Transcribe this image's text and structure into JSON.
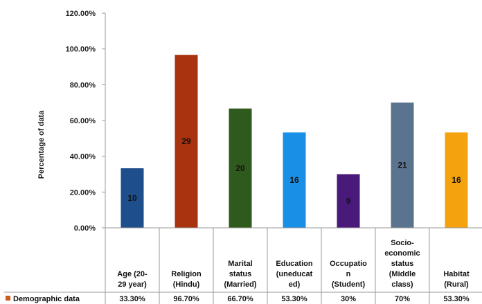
{
  "chart_data": {
    "type": "bar",
    "ylabel": "Percentage of data",
    "ylim": [
      0,
      120
    ],
    "y_ticks": [
      "0.00%",
      "20.00%",
      "40.00%",
      "60.00%",
      "80.00%",
      "100.00%",
      "120.00%"
    ],
    "grid": false,
    "legend": "data-table",
    "categories": [
      [
        "Age (20-",
        "29 year)"
      ],
      [
        "Religion",
        "(Hindu)"
      ],
      [
        "Marital",
        "status",
        "(Married)"
      ],
      [
        "Education",
        "(uneducat",
        "ed)"
      ],
      [
        "Occupatio",
        "n",
        "(Student)"
      ],
      [
        "Socio-",
        "economic",
        "status",
        "(Middle",
        "class)"
      ],
      [
        "Habitat",
        "(Rural)"
      ]
    ],
    "series": [
      {
        "name": "Demographic data",
        "values": [
          33.3,
          96.7,
          66.7,
          53.3,
          30,
          70,
          53.3
        ],
        "bar_labels": [
          "10",
          "29",
          "20",
          "16",
          "9",
          "21",
          "16"
        ],
        "table_values": [
          "33.30%",
          "96.70%",
          "66.70%",
          "53.30%",
          "30%",
          "70%",
          "53.30%"
        ],
        "legend_color": "#d05a1c"
      }
    ],
    "bar_colors": [
      "#1f4e8c",
      "#a8330e",
      "#2e5a1e",
      "#1a8fe6",
      "#4a1a7a",
      "#5a7490",
      "#f5a20f"
    ]
  }
}
